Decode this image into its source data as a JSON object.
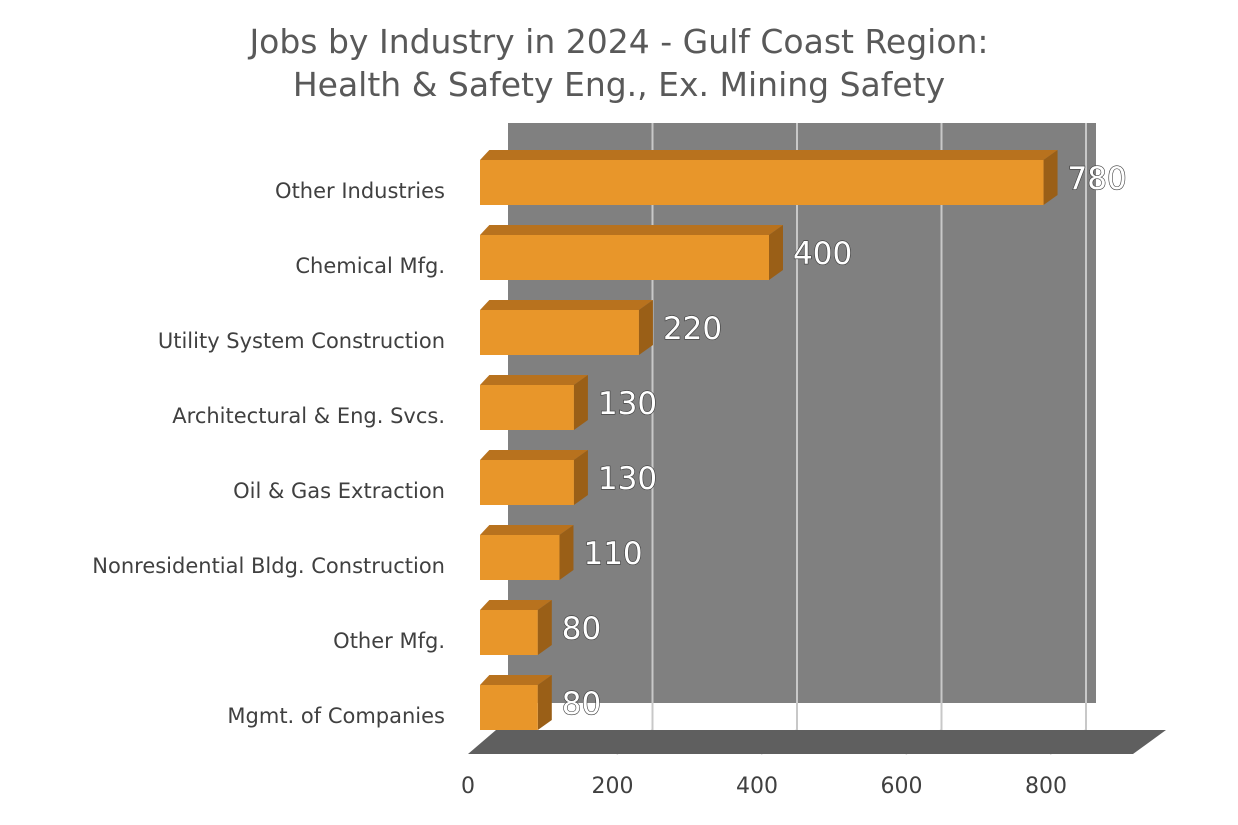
{
  "chart_data": {
    "type": "bar",
    "orientation": "horizontal",
    "title_lines": [
      "Jobs by Industry in 2024 - Gulf Coast Region:",
      "Health & Safety Eng., Ex. Mining Safety"
    ],
    "categories": [
      "Other Industries",
      "Chemical Mfg.",
      "Utility System Construction",
      "Architectural & Eng. Svcs.",
      "Oil & Gas Extraction",
      "Nonresidential Bldg. Construction",
      "Other Mfg.",
      "Mgmt. of Companies"
    ],
    "values": [
      780,
      400,
      220,
      130,
      130,
      110,
      80,
      80
    ],
    "value_labels": [
      "780",
      "400",
      "220",
      "130",
      "130",
      "110",
      "80",
      "80"
    ],
    "xlim": [
      0,
      800
    ],
    "x_ticks": [
      0,
      200,
      400,
      600,
      800
    ],
    "x_tick_labels": [
      "0",
      "200",
      "400",
      "600",
      "800"
    ],
    "grid": true,
    "style": "3d",
    "colors": {
      "bar_front": "#E8962A",
      "bar_top": "#B8721E",
      "bar_side": "#9A5F17",
      "plot_wall": "#808080",
      "plot_floor": "#5F5F5F",
      "gridline": "#C8C8C8"
    }
  }
}
